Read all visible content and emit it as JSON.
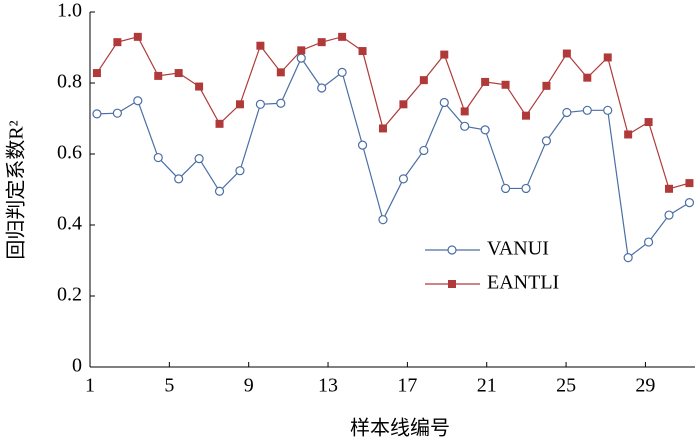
{
  "chart_data": {
    "type": "line",
    "x_label": "样本线编号",
    "y_label": "回归判定系数R²",
    "x": [
      1.35,
      2.38,
      3.41,
      4.44,
      5.47,
      6.5,
      7.53,
      8.56,
      9.59,
      10.62,
      11.65,
      12.68,
      13.71,
      14.74,
      15.77,
      16.8,
      17.83,
      18.86,
      19.89,
      20.92,
      21.95,
      22.98,
      24.01,
      25.04,
      26.07,
      27.1,
      28.13,
      29.16,
      30.19,
      31.22
    ],
    "series": [
      {
        "name": "VANUI",
        "color": "#4a6fa5",
        "marker": "circle",
        "values": [
          0.713,
          0.715,
          0.75,
          0.59,
          0.53,
          0.587,
          0.495,
          0.553,
          0.74,
          0.743,
          0.87,
          0.786,
          0.83,
          0.625,
          0.415,
          0.53,
          0.61,
          0.745,
          0.678,
          0.668,
          0.503,
          0.503,
          0.637,
          0.717,
          0.723,
          0.723,
          0.308,
          0.352,
          0.428,
          0.463
        ]
      },
      {
        "name": "EANTLI",
        "color": "#b03a3a",
        "marker": "square",
        "values": [
          0.828,
          0.915,
          0.93,
          0.82,
          0.828,
          0.79,
          0.685,
          0.74,
          0.905,
          0.83,
          0.892,
          0.915,
          0.93,
          0.89,
          0.672,
          0.74,
          0.808,
          0.88,
          0.72,
          0.803,
          0.795,
          0.708,
          0.792,
          0.883,
          0.815,
          0.872,
          0.655,
          0.69,
          0.502,
          0.518
        ]
      }
    ],
    "xlim": [
      1,
      31.5
    ],
    "xticks": [
      1,
      5,
      9,
      13,
      17,
      21,
      25,
      29
    ],
    "ylim": [
      0,
      1
    ],
    "yticks": [
      0,
      0.2,
      0.4,
      0.6,
      0.8,
      {
        "value": 1,
        "label": "1.0"
      }
    ],
    "legend": "center-right"
  }
}
